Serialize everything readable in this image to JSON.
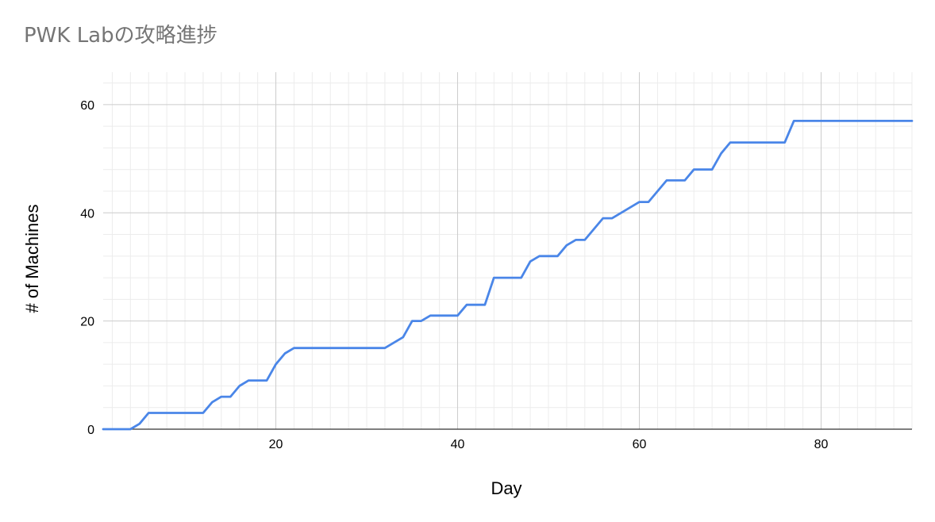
{
  "chart_data": {
    "type": "line",
    "title": "PWK Labの攻略進捗",
    "xlabel": "Day",
    "ylabel": "# of Machines",
    "xlim": [
      1,
      90
    ],
    "ylim": [
      0,
      66
    ],
    "x_ticks": [
      20,
      40,
      60,
      80
    ],
    "y_ticks": [
      0,
      20,
      40,
      60
    ],
    "grid": true,
    "legend": "none",
    "series": [
      {
        "color": "#4a86e8",
        "points": [
          [
            1,
            0
          ],
          [
            4,
            0
          ],
          [
            5,
            1
          ],
          [
            6,
            3
          ],
          [
            12,
            3
          ],
          [
            13,
            5
          ],
          [
            14,
            6
          ],
          [
            15,
            6
          ],
          [
            16,
            8
          ],
          [
            17,
            9
          ],
          [
            19,
            9
          ],
          [
            20,
            12
          ],
          [
            21,
            14
          ],
          [
            22,
            15
          ],
          [
            32,
            15
          ],
          [
            34,
            17
          ],
          [
            35,
            20
          ],
          [
            36,
            20
          ],
          [
            37,
            21
          ],
          [
            40,
            21
          ],
          [
            41,
            23
          ],
          [
            43,
            23
          ],
          [
            44,
            28
          ],
          [
            47,
            28
          ],
          [
            48,
            31
          ],
          [
            49,
            32
          ],
          [
            51,
            32
          ],
          [
            52,
            34
          ],
          [
            53,
            35
          ],
          [
            54,
            35
          ],
          [
            56,
            39
          ],
          [
            57,
            39
          ],
          [
            60,
            42
          ],
          [
            61,
            42
          ],
          [
            63,
            46
          ],
          [
            65,
            46
          ],
          [
            66,
            48
          ],
          [
            68,
            48
          ],
          [
            69,
            51
          ],
          [
            70,
            53
          ],
          [
            76,
            53
          ],
          [
            77,
            57
          ],
          [
            90,
            57
          ]
        ]
      }
    ]
  }
}
